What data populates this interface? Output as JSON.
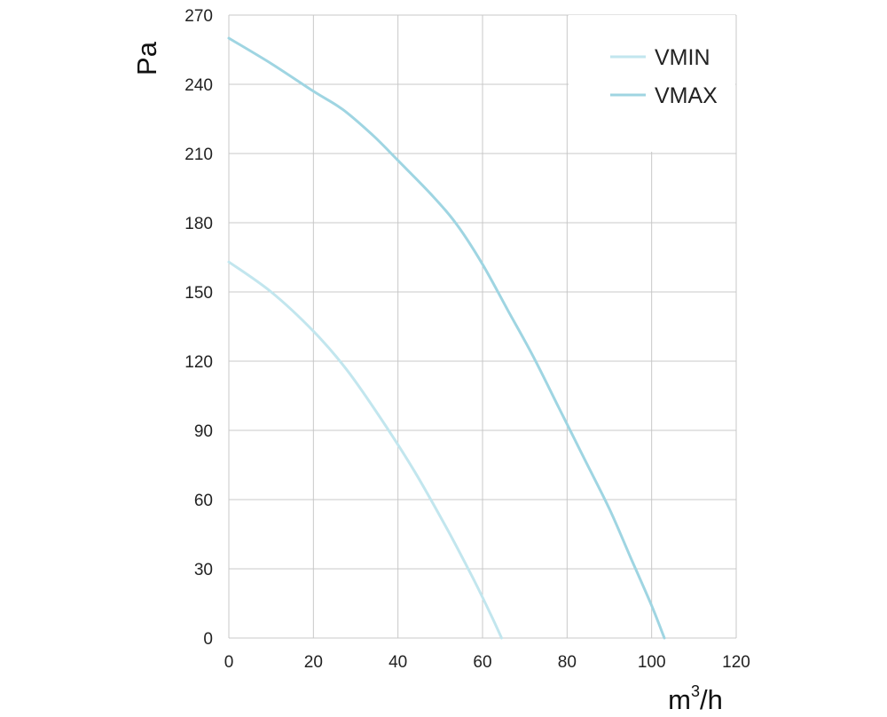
{
  "chart_data": {
    "type": "line",
    "title": "",
    "ylabel": "Pa",
    "xlabel_base": "m",
    "xlabel_sup": "3",
    "xlabel_tail": "/h",
    "xlim": [
      0,
      120
    ],
    "ylim": [
      0,
      270
    ],
    "x_ticks": [
      0,
      20,
      40,
      60,
      80,
      100,
      120
    ],
    "y_ticks": [
      0,
      30,
      60,
      90,
      120,
      150,
      180,
      210,
      240,
      270
    ],
    "grid": true,
    "legend_position": "top-right",
    "series": [
      {
        "name": "VMIN",
        "color": "#c2e6ee",
        "points": [
          [
            0,
            163
          ],
          [
            10,
            150
          ],
          [
            20,
            133
          ],
          [
            28,
            116
          ],
          [
            36,
            95
          ],
          [
            44,
            72
          ],
          [
            52,
            46
          ],
          [
            58,
            25
          ],
          [
            62,
            10
          ],
          [
            64.5,
            0
          ]
        ]
      },
      {
        "name": "VMAX",
        "color": "#9fd5e2",
        "points": [
          [
            0,
            260
          ],
          [
            10,
            249
          ],
          [
            20,
            237
          ],
          [
            27,
            229
          ],
          [
            34,
            218
          ],
          [
            40,
            207
          ],
          [
            48,
            192
          ],
          [
            54,
            179
          ],
          [
            60,
            162
          ],
          [
            66,
            142
          ],
          [
            72,
            122
          ],
          [
            78,
            100
          ],
          [
            84,
            78
          ],
          [
            90,
            56
          ],
          [
            95,
            35
          ],
          [
            100,
            14
          ],
          [
            103,
            0
          ]
        ]
      }
    ]
  }
}
